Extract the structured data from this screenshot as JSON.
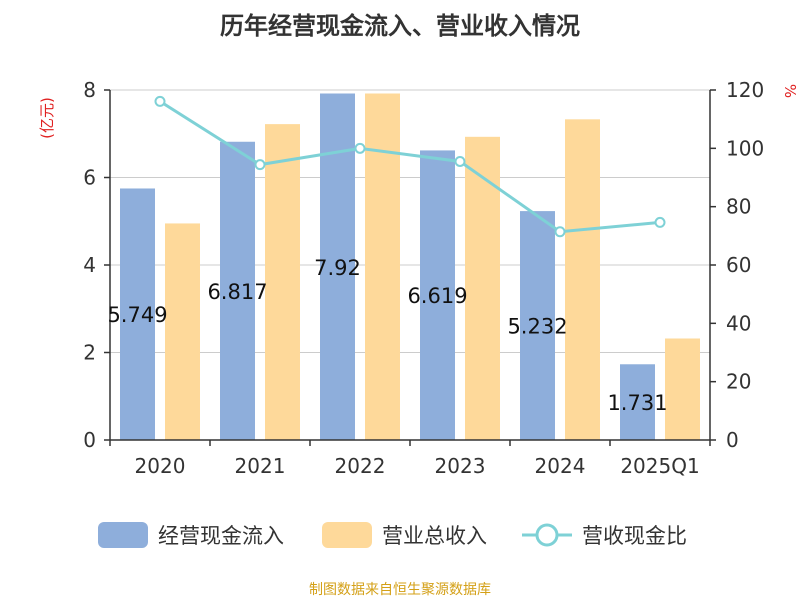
{
  "title": "历年经营现金流入、营业收入情况",
  "source": "制图数据来自恒生聚源数据库",
  "chart_data": {
    "type": "bar",
    "categories": [
      "2020",
      "2021",
      "2022",
      "2023",
      "2024",
      "2025Q1"
    ],
    "series": [
      {
        "name": "经营现金流入",
        "type": "bar",
        "axis": "left",
        "color": "#8eaedb",
        "values": [
          5.749,
          6.817,
          7.92,
          6.619,
          5.232,
          1.731
        ],
        "labels": [
          "5.749",
          "6.817",
          "7.92",
          "6.619",
          "5.232",
          "1.731"
        ]
      },
      {
        "name": "营业总收入",
        "type": "bar",
        "axis": "left",
        "color": "#fed99a",
        "values": [
          4.95,
          7.22,
          7.92,
          6.93,
          7.33,
          2.32
        ]
      },
      {
        "name": "营收现金比",
        "type": "line",
        "axis": "right",
        "color": "#7ed1d6",
        "values": [
          116.1,
          94.4,
          100.0,
          95.5,
          71.4,
          74.6
        ]
      }
    ],
    "y_left": {
      "unit": "(亿元)",
      "min": 0,
      "max": 8,
      "ticks": [
        "0",
        "2",
        "4",
        "6",
        "8"
      ]
    },
    "y_right": {
      "unit": "%",
      "min": 0,
      "max": 120,
      "ticks": [
        "0",
        "20",
        "40",
        "60",
        "80",
        "100",
        "120"
      ]
    },
    "grid": true,
    "legend_position": "bottom"
  }
}
